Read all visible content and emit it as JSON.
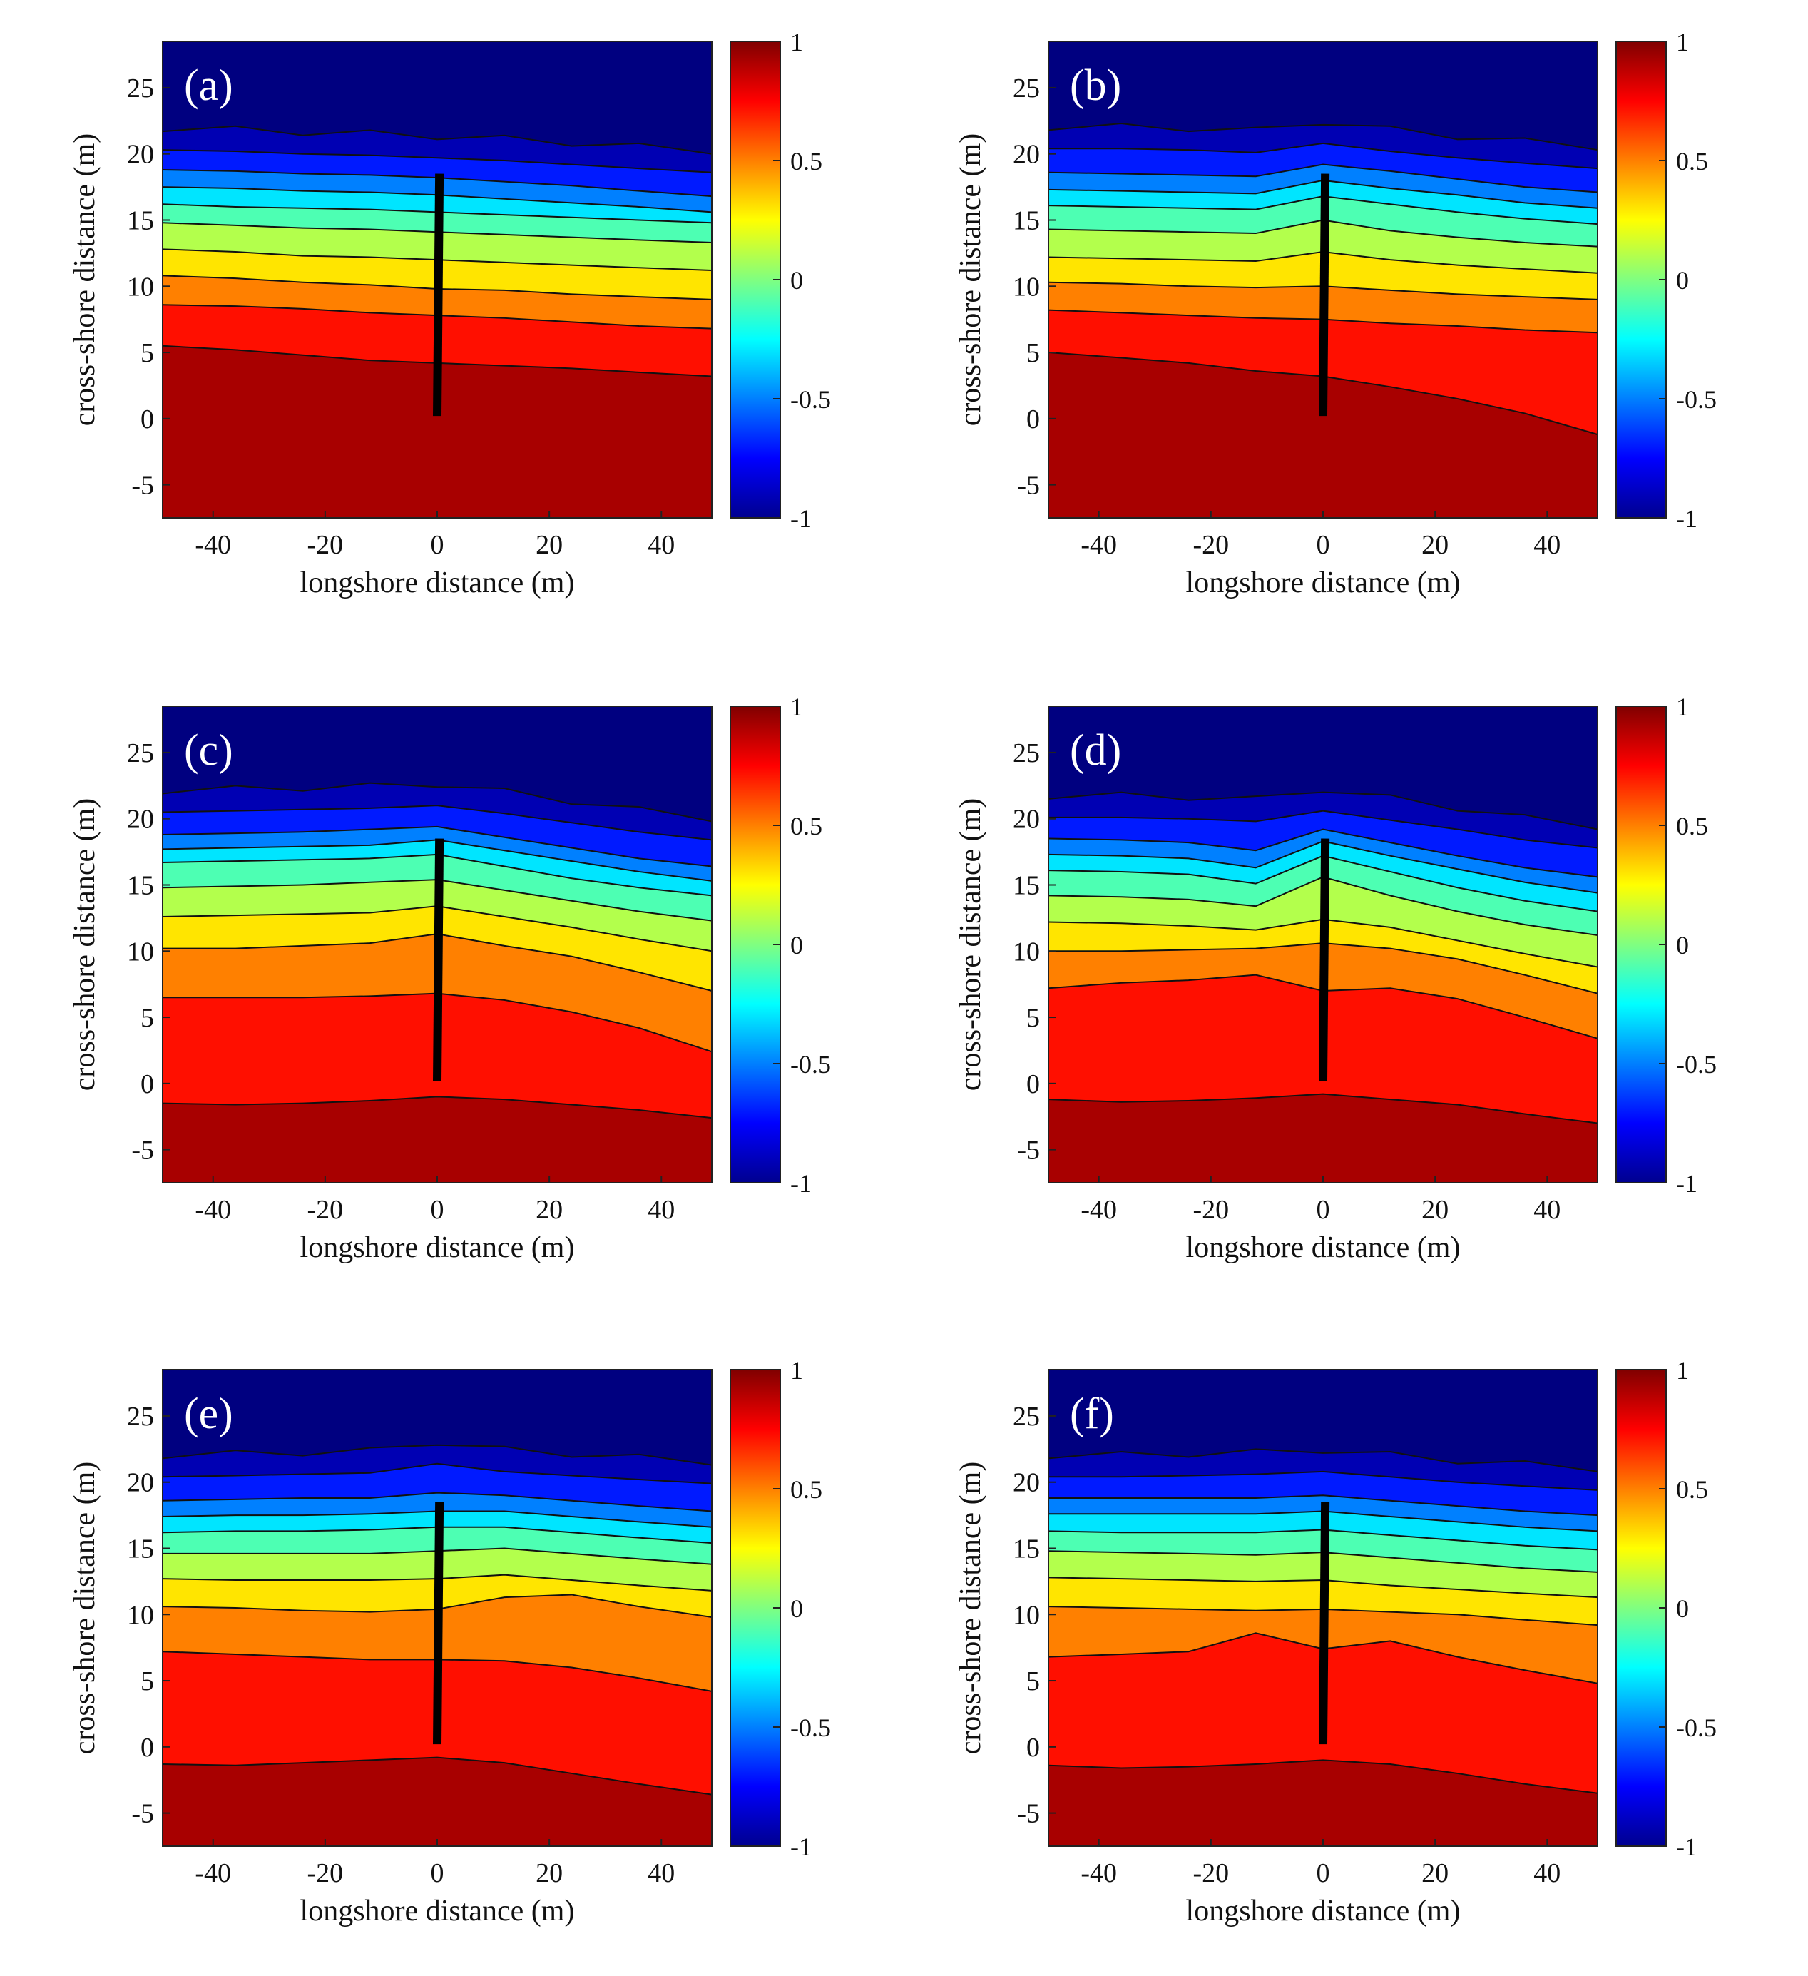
{
  "chart_data": {
    "type": "contour",
    "shared": {
      "xlabel": "longshore distance (m)",
      "ylabel": "cross-shore distance (m)",
      "xlim": [
        -49,
        49
      ],
      "ylim": [
        -7.5,
        28.5
      ],
      "xticks": [
        -40,
        -20,
        0,
        20,
        40
      ],
      "yticks": [
        -5,
        0,
        5,
        10,
        15,
        20,
        25
      ],
      "colorbar": {
        "range": [
          -1,
          1
        ],
        "ticks": [
          -1,
          -0.5,
          0,
          0.5,
          1
        ],
        "tick_labels": [
          "-1",
          "-0.5",
          "0",
          "0.5",
          "1"
        ],
        "colormap": "jet"
      },
      "contour_levels": [
        -0.8,
        -0.6,
        -0.4,
        -0.2,
        0,
        0.2,
        0.4,
        0.6,
        0.8
      ],
      "structure": {
        "x": 0,
        "y_from": 0.2,
        "y_to": 18.5
      }
    },
    "panels": [
      {
        "label": "(a)",
        "bands": [
          {
            "value": 0.72,
            "y": [
              5.5,
              5.2,
              4.8,
              4.4,
              4.2,
              4.0,
              3.8,
              3.5,
              3.2
            ]
          },
          {
            "value": 0.5,
            "y": [
              8.6,
              8.5,
              8.3,
              8.0,
              7.8,
              7.6,
              7.3,
              7.0,
              6.8
            ]
          },
          {
            "value": 0.3,
            "y": [
              10.8,
              10.6,
              10.3,
              10.1,
              9.8,
              9.7,
              9.4,
              9.2,
              9.0
            ]
          },
          {
            "value": 0.1,
            "y": [
              12.8,
              12.6,
              12.3,
              12.2,
              12.0,
              11.8,
              11.6,
              11.4,
              11.2
            ]
          },
          {
            "value": -0.1,
            "y": [
              14.8,
              14.6,
              14.4,
              14.3,
              14.1,
              13.9,
              13.7,
              13.5,
              13.3
            ]
          },
          {
            "value": -0.3,
            "y": [
              16.2,
              16.0,
              15.9,
              15.8,
              15.6,
              15.4,
              15.2,
              15.0,
              14.8
            ]
          },
          {
            "value": -0.5,
            "y": [
              17.5,
              17.4,
              17.2,
              17.1,
              16.9,
              16.6,
              16.3,
              16.0,
              15.6
            ]
          },
          {
            "value": -0.7,
            "y": [
              18.8,
              18.7,
              18.5,
              18.4,
              18.2,
              17.9,
              17.6,
              17.2,
              16.8
            ]
          },
          {
            "value": -0.9,
            "y": [
              20.3,
              20.2,
              20.0,
              19.9,
              19.7,
              19.5,
              19.2,
              18.9,
              18.6
            ]
          }
        ]
      },
      {
        "label": "(b)",
        "bands": [
          {
            "value": 0.72,
            "y": [
              5.0,
              4.6,
              4.2,
              3.6,
              3.2,
              2.4,
              1.5,
              0.4,
              -1.2
            ]
          },
          {
            "value": 0.5,
            "y": [
              8.2,
              8.0,
              7.8,
              7.6,
              7.5,
              7.2,
              7.0,
              6.7,
              6.5
            ]
          },
          {
            "value": 0.3,
            "y": [
              10.3,
              10.2,
              10.0,
              9.9,
              10.0,
              9.7,
              9.4,
              9.2,
              9.0
            ]
          },
          {
            "value": 0.1,
            "y": [
              12.2,
              12.1,
              12.0,
              11.9,
              12.6,
              12.0,
              11.6,
              11.3,
              11.0
            ]
          },
          {
            "value": -0.1,
            "y": [
              14.3,
              14.2,
              14.1,
              14.0,
              15.0,
              14.2,
              13.7,
              13.3,
              13.0
            ]
          },
          {
            "value": -0.3,
            "y": [
              16.1,
              16.0,
              15.9,
              15.8,
              16.8,
              16.2,
              15.6,
              15.1,
              14.7
            ]
          },
          {
            "value": -0.5,
            "y": [
              17.3,
              17.2,
              17.1,
              17.0,
              18.0,
              17.4,
              16.9,
              16.3,
              15.9
            ]
          },
          {
            "value": -0.7,
            "y": [
              18.6,
              18.5,
              18.4,
              18.3,
              19.2,
              18.7,
              18.1,
              17.5,
              17.1
            ]
          },
          {
            "value": -0.9,
            "y": [
              20.4,
              20.4,
              20.3,
              20.1,
              20.8,
              20.2,
              19.7,
              19.3,
              18.9
            ]
          }
        ]
      },
      {
        "label": "(c)",
        "bands": [
          {
            "value": 0.72,
            "y": [
              -1.5,
              -1.6,
              -1.5,
              -1.3,
              -1.0,
              -1.2,
              -1.6,
              -2.0,
              -2.6
            ]
          },
          {
            "value": 0.5,
            "y": [
              6.5,
              6.5,
              6.5,
              6.6,
              6.8,
              6.3,
              5.4,
              4.2,
              2.4
            ]
          },
          {
            "value": 0.3,
            "y": [
              10.2,
              10.2,
              10.4,
              10.6,
              11.3,
              10.4,
              9.6,
              8.4,
              7.0
            ]
          },
          {
            "value": 0.1,
            "y": [
              12.6,
              12.7,
              12.8,
              12.9,
              13.4,
              12.6,
              11.8,
              10.9,
              10.0
            ]
          },
          {
            "value": -0.1,
            "y": [
              14.8,
              14.9,
              15.0,
              15.2,
              15.4,
              14.6,
              13.8,
              13.0,
              12.3
            ]
          },
          {
            "value": -0.3,
            "y": [
              16.7,
              16.8,
              16.9,
              17.0,
              17.3,
              16.4,
              15.5,
              14.8,
              14.2
            ]
          },
          {
            "value": -0.5,
            "y": [
              17.7,
              17.8,
              17.9,
              18.0,
              18.4,
              17.6,
              16.8,
              16.0,
              15.3
            ]
          },
          {
            "value": -0.7,
            "y": [
              18.8,
              18.9,
              19.0,
              19.2,
              19.4,
              18.6,
              17.8,
              17.0,
              16.4
            ]
          },
          {
            "value": -0.9,
            "y": [
              20.5,
              20.6,
              20.7,
              20.8,
              21.0,
              20.4,
              19.7,
              19.0,
              18.4
            ]
          }
        ]
      },
      {
        "label": "(d)",
        "bands": [
          {
            "value": 0.72,
            "y": [
              -1.2,
              -1.4,
              -1.3,
              -1.1,
              -0.8,
              -1.2,
              -1.6,
              -2.3,
              -3.0
            ]
          },
          {
            "value": 0.5,
            "y": [
              7.2,
              7.6,
              7.8,
              8.2,
              7.0,
              7.2,
              6.4,
              5.0,
              3.4
            ]
          },
          {
            "value": 0.3,
            "y": [
              10.0,
              10.0,
              10.1,
              10.2,
              10.6,
              10.2,
              9.4,
              8.2,
              6.8
            ]
          },
          {
            "value": 0.1,
            "y": [
              12.2,
              12.1,
              11.9,
              11.6,
              12.4,
              11.8,
              10.8,
              9.8,
              8.8
            ]
          },
          {
            "value": -0.1,
            "y": [
              14.2,
              14.1,
              13.9,
              13.4,
              15.6,
              14.2,
              13.0,
              12.0,
              11.2
            ]
          },
          {
            "value": -0.3,
            "y": [
              16.1,
              16.0,
              15.8,
              15.1,
              17.2,
              16.0,
              14.8,
              13.8,
              13.0
            ]
          },
          {
            "value": -0.5,
            "y": [
              17.3,
              17.2,
              17.0,
              16.3,
              18.3,
              17.2,
              16.2,
              15.2,
              14.4
            ]
          },
          {
            "value": -0.7,
            "y": [
              18.5,
              18.4,
              18.2,
              17.6,
              19.2,
              18.2,
              17.2,
              16.3,
              15.6
            ]
          },
          {
            "value": -0.9,
            "y": [
              20.1,
              20.1,
              20.0,
              19.8,
              20.6,
              19.9,
              19.2,
              18.4,
              17.8
            ]
          }
        ]
      },
      {
        "label": "(e)",
        "bands": [
          {
            "value": 0.72,
            "y": [
              -1.3,
              -1.4,
              -1.2,
              -1.0,
              -0.8,
              -1.2,
              -2.0,
              -2.8,
              -3.6
            ]
          },
          {
            "value": 0.5,
            "y": [
              7.2,
              7.0,
              6.8,
              6.6,
              6.6,
              6.5,
              6.0,
              5.2,
              4.2
            ]
          },
          {
            "value": 0.3,
            "y": [
              10.6,
              10.5,
              10.3,
              10.2,
              10.4,
              11.3,
              11.5,
              10.6,
              9.8
            ]
          },
          {
            "value": 0.1,
            "y": [
              12.7,
              12.6,
              12.6,
              12.6,
              12.7,
              13.0,
              12.6,
              12.2,
              11.8
            ]
          },
          {
            "value": -0.1,
            "y": [
              14.6,
              14.6,
              14.6,
              14.6,
              14.8,
              15.0,
              14.6,
              14.2,
              13.8
            ]
          },
          {
            "value": -0.3,
            "y": [
              16.2,
              16.3,
              16.3,
              16.4,
              16.6,
              16.6,
              16.2,
              15.8,
              15.4
            ]
          },
          {
            "value": -0.5,
            "y": [
              17.4,
              17.5,
              17.5,
              17.6,
              17.8,
              17.8,
              17.4,
              17.0,
              16.6
            ]
          },
          {
            "value": -0.7,
            "y": [
              18.6,
              18.7,
              18.8,
              18.8,
              19.2,
              19.0,
              18.6,
              18.2,
              17.8
            ]
          },
          {
            "value": -0.9,
            "y": [
              20.4,
              20.5,
              20.6,
              20.7,
              21.4,
              20.8,
              20.5,
              20.2,
              19.9
            ]
          }
        ]
      },
      {
        "label": "(f)",
        "bands": [
          {
            "value": 0.72,
            "y": [
              -1.4,
              -1.6,
              -1.5,
              -1.3,
              -1.0,
              -1.3,
              -2.0,
              -2.8,
              -3.5
            ]
          },
          {
            "value": 0.5,
            "y": [
              6.8,
              7.0,
              7.2,
              8.6,
              7.4,
              8.0,
              6.8,
              5.8,
              4.8
            ]
          },
          {
            "value": 0.3,
            "y": [
              10.6,
              10.5,
              10.4,
              10.3,
              10.4,
              10.2,
              10.0,
              9.6,
              9.2
            ]
          },
          {
            "value": 0.1,
            "y": [
              12.8,
              12.7,
              12.6,
              12.5,
              12.6,
              12.2,
              11.9,
              11.6,
              11.3
            ]
          },
          {
            "value": -0.1,
            "y": [
              14.8,
              14.7,
              14.6,
              14.5,
              14.7,
              14.3,
              13.9,
              13.5,
              13.2
            ]
          },
          {
            "value": -0.3,
            "y": [
              16.3,
              16.2,
              16.2,
              16.2,
              16.4,
              16.0,
              15.6,
              15.2,
              14.9
            ]
          },
          {
            "value": -0.5,
            "y": [
              17.6,
              17.6,
              17.6,
              17.6,
              17.8,
              17.4,
              17.0,
              16.6,
              16.3
            ]
          },
          {
            "value": -0.7,
            "y": [
              18.8,
              18.8,
              18.8,
              18.8,
              19.0,
              18.6,
              18.2,
              17.8,
              17.5
            ]
          },
          {
            "value": -0.9,
            "y": [
              20.4,
              20.4,
              20.5,
              20.6,
              20.8,
              20.4,
              20.0,
              19.7,
              19.4
            ]
          }
        ]
      }
    ],
    "band_x_positions": [
      -49,
      -36,
      -24,
      -12,
      0,
      12,
      24,
      36,
      49
    ]
  }
}
